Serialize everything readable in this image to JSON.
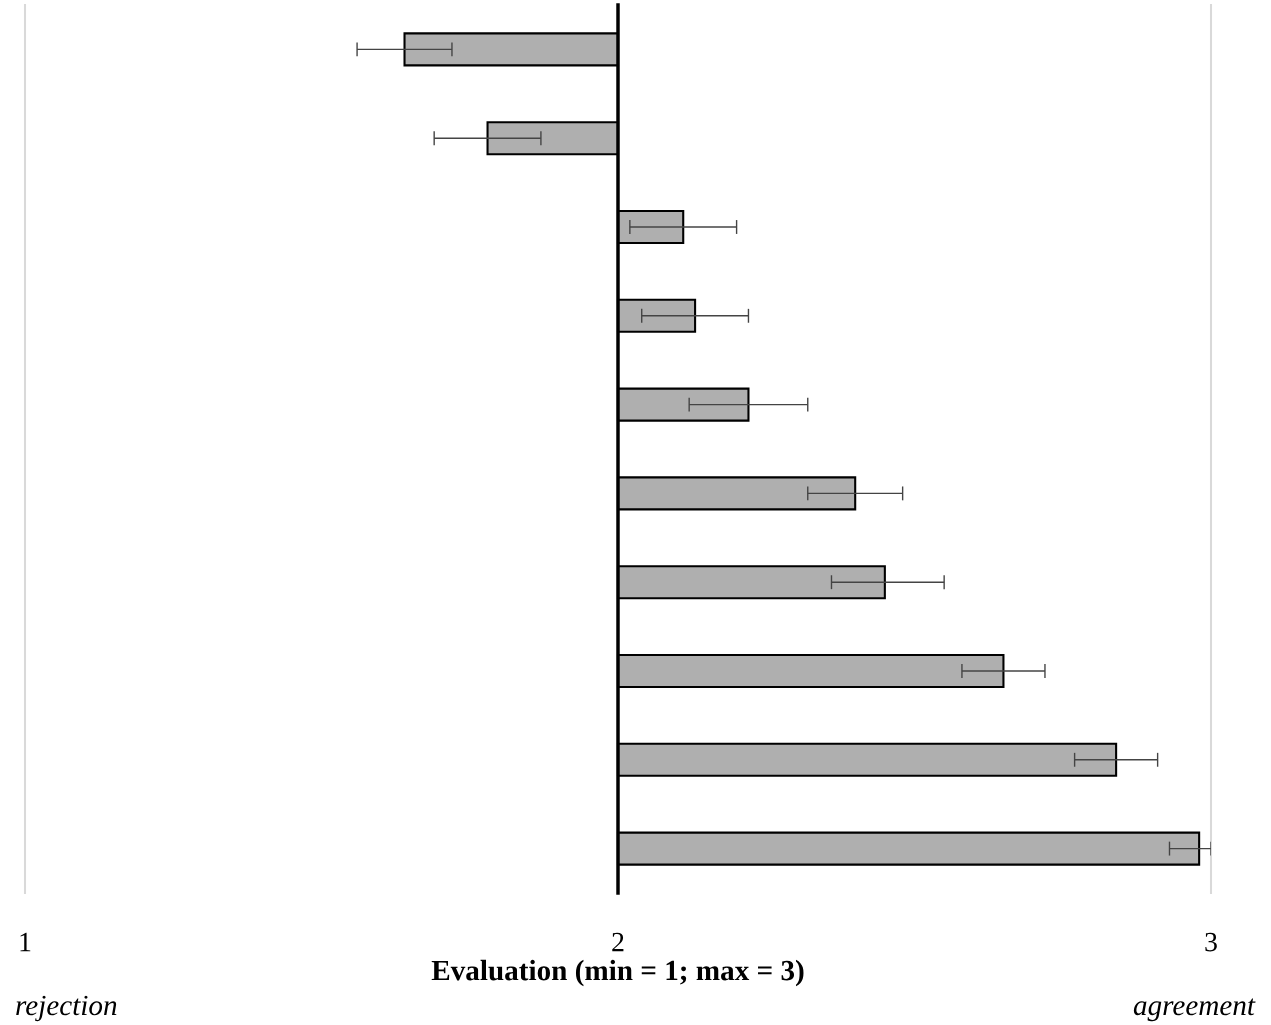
{
  "chart_data": {
    "type": "bar",
    "orientation": "horizontal",
    "xlabel": "Evaluation (min = 1; max = 3)",
    "categories": [
      null,
      null,
      null,
      null,
      null,
      null,
      null,
      null,
      null,
      null
    ],
    "base": [
      2,
      2,
      2,
      2,
      2,
      2,
      2,
      2,
      2,
      2
    ],
    "values": [
      -0.36,
      -0.22,
      0.11,
      0.13,
      0.22,
      0.4,
      0.45,
      0.65,
      0.84,
      0.98
    ],
    "errors": [
      [
        1.56,
        1.72
      ],
      [
        1.69,
        1.87
      ],
      [
        2.02,
        2.2
      ],
      [
        2.04,
        2.22
      ],
      [
        2.12,
        2.32
      ],
      [
        2.32,
        2.48
      ],
      [
        2.36,
        2.55
      ],
      [
        2.58,
        2.72
      ],
      [
        2.77,
        2.91
      ],
      [
        2.93,
        3.0
      ]
    ],
    "color": "#afafaf",
    "xlim": [
      1,
      3
    ],
    "xticks": [
      1,
      2,
      3
    ],
    "ref_lines": [
      {
        "axis": "x",
        "value": 1,
        "color": "#d9d9d9"
      },
      {
        "axis": "x",
        "value": 2,
        "color": "#000000"
      },
      {
        "axis": "x",
        "value": 3,
        "color": "#d9d9d9"
      }
    ],
    "annotations": [
      "rejection",
      "agreement"
    ]
  }
}
